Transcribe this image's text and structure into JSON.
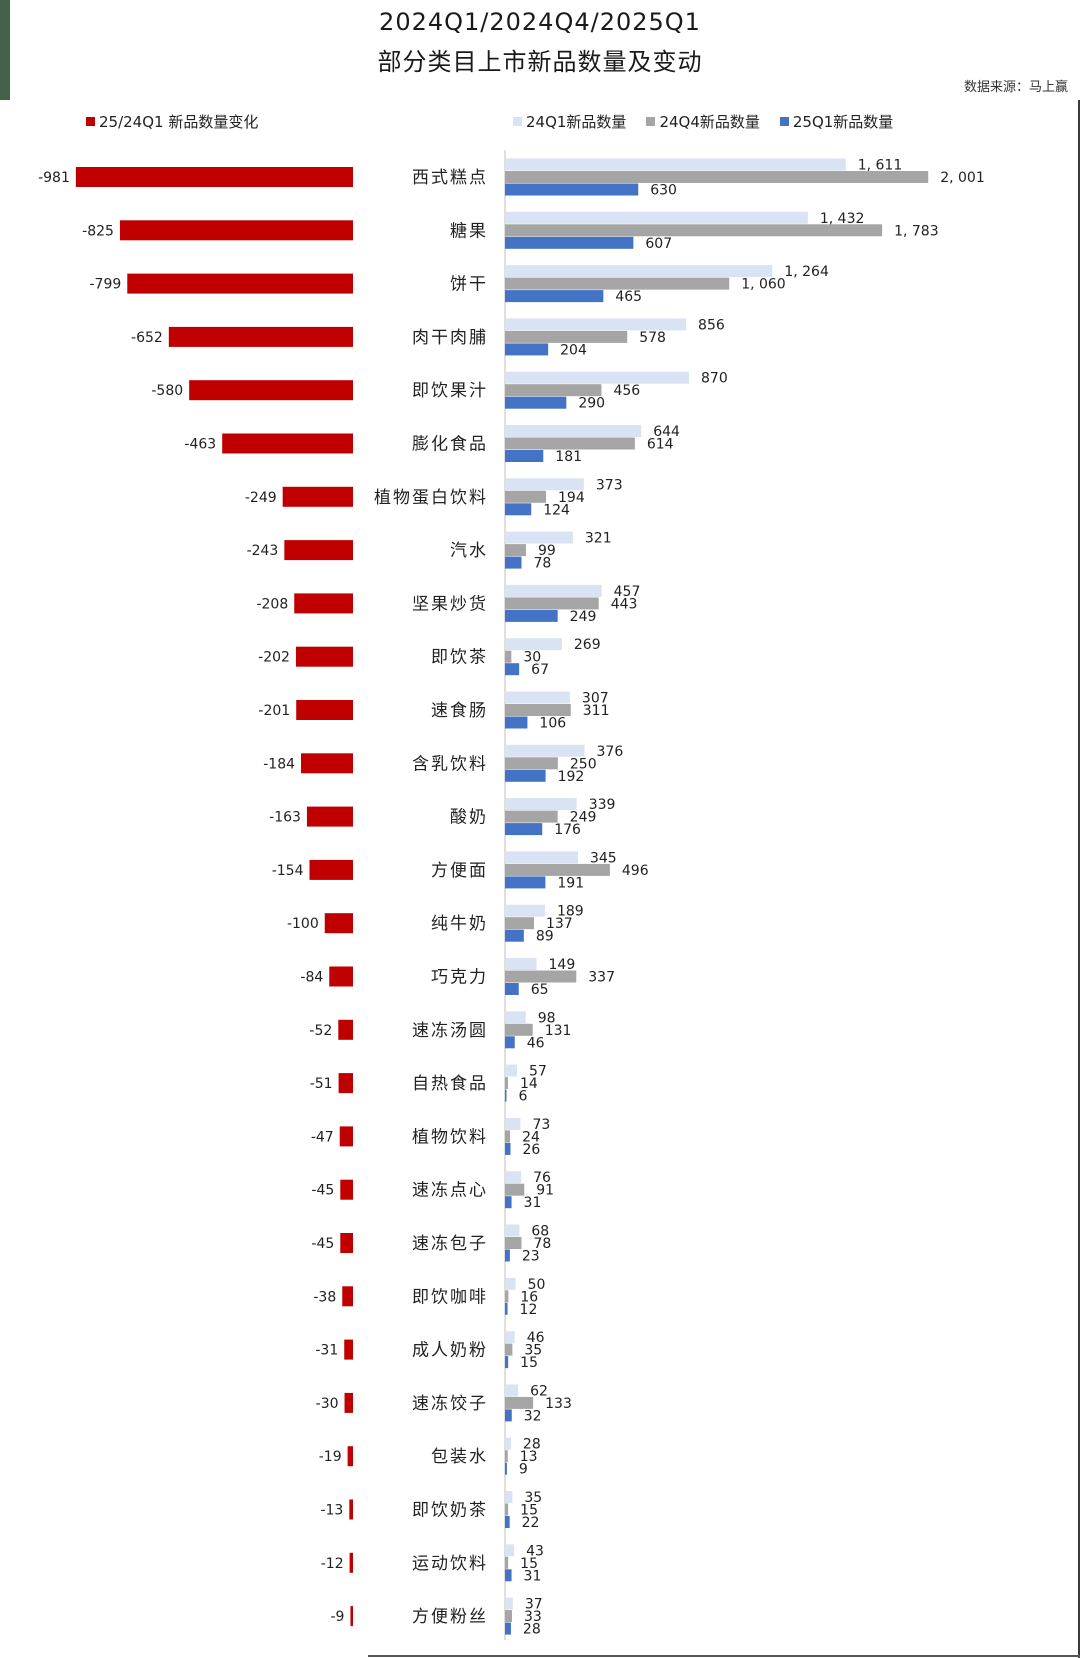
{
  "page": {
    "title_line1": "2024Q1/2024Q4/2025Q1",
    "title_line2": "部分类目上市新品数量及变动",
    "source": "数据来源：马上赢"
  },
  "legend": {
    "change_label": "25/24Q1 新品数量变化",
    "series_labels": [
      "24Q1新品数量",
      "24Q4新品数量",
      "25Q1新品数量"
    ]
  },
  "colors": {
    "change": "#c00000",
    "q1_2024": "#dae3f3",
    "q4_2024": "#a5a5a5",
    "q1_2025": "#4472c4"
  },
  "chart_data": {
    "type": "bar",
    "title": "2024Q1/2024Q4/2025Q1 部分类目上市新品数量及变动",
    "orientation": "horizontal",
    "categories": [
      "西式糕点",
      "糖果",
      "饼干",
      "肉干肉脯",
      "即饮果汁",
      "膨化食品",
      "植物蛋白饮料",
      "汽水",
      "坚果炒货",
      "即饮茶",
      "速食肠",
      "含乳饮料",
      "酸奶",
      "方便面",
      "纯牛奶",
      "巧克力",
      "速冻汤圆",
      "自热食品",
      "植物饮料",
      "速冻点心",
      "速冻包子",
      "即饮咖啡",
      "成人奶粉",
      "速冻饺子",
      "包装水",
      "即饮奶茶",
      "运动饮料",
      "方便粉丝"
    ],
    "change": {
      "name": "25/24Q1 新品数量变化",
      "values": [
        -981,
        -825,
        -799,
        -652,
        -580,
        -463,
        -249,
        -243,
        -208,
        -202,
        -201,
        -184,
        -163,
        -154,
        -100,
        -84,
        -52,
        -51,
        -47,
        -45,
        -45,
        -38,
        -31,
        -30,
        -19,
        -13,
        -12,
        -9
      ]
    },
    "series": [
      {
        "name": "24Q1新品数量",
        "values": [
          1611,
          1432,
          1264,
          856,
          870,
          644,
          373,
          321,
          457,
          269,
          307,
          376,
          339,
          345,
          189,
          149,
          98,
          57,
          73,
          76,
          68,
          50,
          46,
          62,
          28,
          35,
          43,
          37
        ]
      },
      {
        "name": "24Q4新品数量",
        "values": [
          2001,
          1783,
          1060,
          578,
          456,
          614,
          194,
          99,
          443,
          30,
          311,
          250,
          249,
          496,
          137,
          337,
          131,
          14,
          24,
          91,
          78,
          16,
          35,
          133,
          13,
          15,
          15,
          33
        ]
      },
      {
        "name": "25Q1新品数量",
        "values": [
          630,
          607,
          465,
          204,
          290,
          181,
          124,
          78,
          249,
          67,
          106,
          192,
          176,
          191,
          89,
          65,
          46,
          6,
          26,
          31,
          23,
          12,
          15,
          32,
          9,
          22,
          31,
          28
        ]
      }
    ],
    "data_label_format": "thousands separator ', '",
    "legend_position": "top",
    "grid": false
  }
}
